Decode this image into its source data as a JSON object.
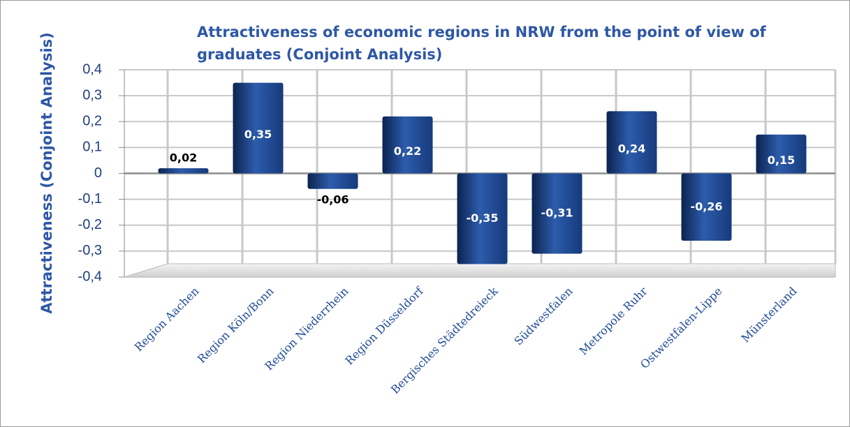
{
  "chart_data": {
    "type": "bar",
    "title": "Attractiveness of economic regions in NRW from the point of view of graduates (Conjoint Analysis)",
    "y_label": "Attractiveness (Conjoint Analysis)",
    "categories": [
      "Region Aachen",
      "Region Köln/Bonn",
      "Region Niederrhein",
      "Region Düsseldorf",
      "Bergisches Städtedreieck",
      "Südwestfalen",
      "Metropole Ruhr",
      "Ostwestfalen-Lippe",
      "Münsterland"
    ],
    "values": [
      0.02,
      0.35,
      -0.06,
      0.22,
      -0.35,
      -0.31,
      0.24,
      -0.26,
      0.15
    ],
    "value_labels": [
      "0,02",
      "0,35",
      "-0,06",
      "0,22",
      "-0,35",
      "-0,31",
      "0,24",
      "-0,26",
      "0,15"
    ],
    "color": "#1c4289",
    "ylim": [
      -0.4,
      0.4
    ],
    "yticks": [
      {
        "value": -0.4,
        "label": "-0,4"
      },
      {
        "value": -0.3,
        "label": "-0,3"
      },
      {
        "value": -0.2,
        "label": "-0,2"
      },
      {
        "value": -0.1,
        "label": "-0,1"
      },
      0,
      {
        "value": 0.1,
        "label": "0,1"
      },
      {
        "value": 0.2,
        "label": "0,2"
      },
      {
        "value": 0.3,
        "label": "0,3"
      },
      {
        "value": 0.4,
        "label": "0,4"
      }
    ],
    "grid": true
  }
}
